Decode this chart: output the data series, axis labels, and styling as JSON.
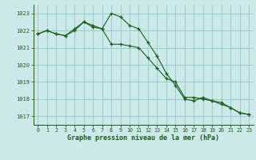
{
  "line1_x": [
    0,
    1,
    2,
    3,
    4,
    5,
    6,
    7,
    8,
    9,
    10,
    11,
    12,
    13,
    14,
    15,
    16,
    17,
    18,
    19,
    20,
    21,
    22,
    23
  ],
  "line1_y": [
    1021.8,
    1022.0,
    1021.8,
    1021.7,
    1022.1,
    1022.5,
    1022.3,
    1022.1,
    1023.0,
    1022.8,
    1022.3,
    1022.1,
    1021.3,
    1020.5,
    1019.5,
    1018.8,
    1018.0,
    1017.9,
    1018.1,
    1017.9,
    1017.7,
    1017.5,
    1017.2,
    1017.1
  ],
  "line2_x": [
    0,
    1,
    2,
    3,
    4,
    5,
    6,
    7,
    8,
    9,
    10,
    11,
    12,
    13,
    14,
    15,
    16,
    17,
    18,
    19,
    20,
    21,
    22,
    23
  ],
  "line2_y": [
    1021.8,
    1022.0,
    1021.8,
    1021.7,
    1022.0,
    1022.5,
    1022.2,
    1022.1,
    1021.2,
    1021.2,
    1021.1,
    1021.0,
    1020.4,
    1019.8,
    1019.2,
    1019.0,
    1018.1,
    1018.1,
    1018.0,
    1017.9,
    1017.8,
    1017.5,
    1017.2,
    1017.1
  ],
  "bg_color": "#cce8e8",
  "grid_color": "#99cccc",
  "line_color": "#1a5c1a",
  "xlabel": "Graphe pression niveau de la mer (hPa)",
  "xlabel_color": "#1a5c1a",
  "ylabel_color": "#1a5c1a",
  "tick_color": "#1a5c1a",
  "ylim_min": 1016.5,
  "ylim_max": 1023.5,
  "xlim_min": -0.5,
  "xlim_max": 23.5,
  "yticks": [
    1017,
    1018,
    1019,
    1020,
    1021,
    1022,
    1023
  ],
  "xticks": [
    0,
    1,
    2,
    3,
    4,
    5,
    6,
    7,
    8,
    9,
    10,
    11,
    12,
    13,
    14,
    15,
    16,
    17,
    18,
    19,
    20,
    21,
    22,
    23
  ]
}
